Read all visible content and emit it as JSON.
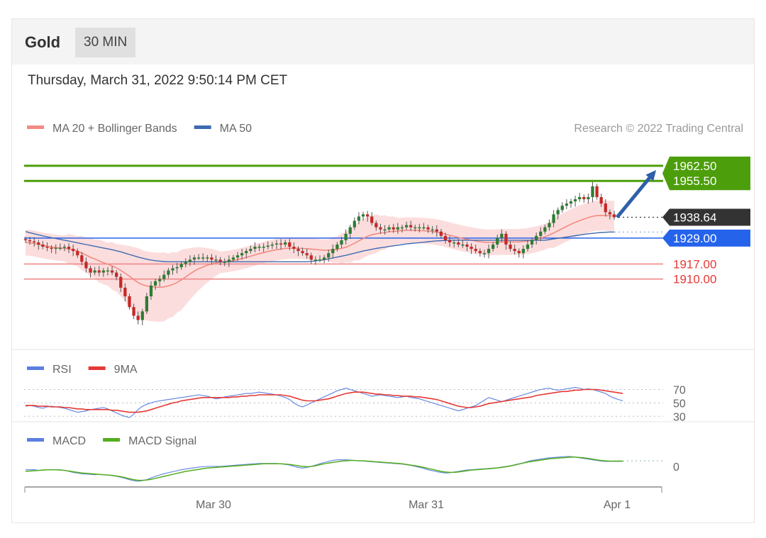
{
  "header": {
    "title": "Gold",
    "timeframe": "30 MIN"
  },
  "timestamp": "Thursday, March 31, 2022 9:50:14 PM CET",
  "colors": {
    "green": "#4c9e0b",
    "blue": "#2563eb",
    "red": "#e53935",
    "dark": "#333333",
    "band": "#fcd7d7",
    "ma20": "#f28b82",
    "ma50": "#3d6bb3",
    "rsi": "#5b7fe0",
    "ninema": "#e53935",
    "macd": "#5b7fe0",
    "signal": "#54ad1e"
  },
  "chart_data": [
    {
      "type": "candlestick",
      "legend": [
        {
          "label": "MA 20 + Bollinger Bands",
          "color": "#f28b82"
        },
        {
          "label": "MA 50",
          "color": "#3d6bb3"
        }
      ],
      "credit": "Research © 2022 Trading Central",
      "ylim": [
        1880,
        1972
      ],
      "x_labels": [
        "Mar 30",
        "Mar 31",
        "Apr 1"
      ],
      "levels": [
        {
          "value": 1962.5,
          "label": "1962.50",
          "kind": "resistance"
        },
        {
          "value": 1955.5,
          "label": "1955.50",
          "kind": "resistance"
        },
        {
          "value": 1938.64,
          "label": "1938.64",
          "kind": "last"
        },
        {
          "value": 1929.0,
          "label": "1929.00",
          "kind": "pivot"
        },
        {
          "value": 1917.0,
          "label": "1917.00",
          "kind": "support"
        },
        {
          "value": 1910.0,
          "label": "1910.00",
          "kind": "support"
        }
      ],
      "close": [
        1928,
        1927.5,
        1927,
        1926,
        1925,
        1924.5,
        1924,
        1924.5,
        1924.5,
        1925,
        1924,
        1923,
        1921,
        1918,
        1915,
        1913,
        1914,
        1913,
        1914,
        1914,
        1913,
        1911,
        1906,
        1902,
        1897,
        1893,
        1891,
        1895,
        1902,
        1907,
        1909,
        1910,
        1912,
        1914,
        1915,
        1915.5,
        1917,
        1918,
        1919,
        1920,
        1920,
        1920,
        1920,
        1919,
        1919,
        1918,
        1918,
        1919,
        1920,
        1921,
        1922,
        1923,
        1924,
        1925,
        1925,
        1925,
        1925.5,
        1926,
        1926.5,
        1926,
        1927,
        1925,
        1924,
        1923,
        1922,
        1921,
        1919,
        1919,
        1919,
        1920,
        1922,
        1924,
        1926,
        1928,
        1931,
        1934,
        1937,
        1939,
        1940,
        1939,
        1936,
        1934,
        1933,
        1933,
        1934,
        1933,
        1934,
        1934,
        1935,
        1934,
        1934,
        1934,
        1934,
        1933,
        1933,
        1932,
        1930,
        1928,
        1927,
        1927,
        1926,
        1926,
        1925,
        1924,
        1923,
        1922,
        1922,
        1924,
        1926,
        1929,
        1931,
        1926,
        1924,
        1923,
        1922,
        1924,
        1926,
        1928,
        1930,
        1932,
        1934,
        1936,
        1940,
        1942,
        1944,
        1945,
        1946,
        1947,
        1948,
        1947,
        1948,
        1953,
        1948,
        1945,
        1941,
        1940,
        1938.64
      ],
      "ma20": [
        1927,
        1926.8,
        1926.5,
        1926,
        1925.6,
        1925.2,
        1924.9,
        1924.6,
        1924.4,
        1924.2,
        1923.9,
        1923.5,
        1922.9,
        1922.1,
        1921.1,
        1920.1,
        1919.3,
        1918.4,
        1917.6,
        1916.9,
        1916.1,
        1915.2,
        1914,
        1912.7,
        1911.3,
        1909.8,
        1908.4,
        1907.4,
        1906.8,
        1906.5,
        1906.3,
        1906.2,
        1906.4,
        1906.8,
        1907.5,
        1908.4,
        1909.6,
        1911,
        1912.4,
        1913.7,
        1914.8,
        1915.6,
        1916.4,
        1917,
        1917.5,
        1917.8,
        1918,
        1918.3,
        1918.6,
        1919,
        1919.5,
        1920,
        1920.6,
        1921.2,
        1921.8,
        1922.3,
        1922.8,
        1923.2,
        1923.6,
        1923.9,
        1924.2,
        1924.3,
        1924.3,
        1924.3,
        1924.2,
        1924.1,
        1923.9,
        1923.7,
        1923.5,
        1923.4,
        1923.4,
        1923.5,
        1923.8,
        1924.2,
        1924.8,
        1925.6,
        1926.6,
        1927.7,
        1928.8,
        1929.8,
        1930.5,
        1931,
        1931.3,
        1931.6,
        1931.9,
        1932.1,
        1932.3,
        1932.5,
        1932.6,
        1932.6,
        1932.6,
        1932.5,
        1932.4,
        1932.2,
        1932,
        1931.7,
        1931.3,
        1930.8,
        1930.3,
        1929.8,
        1929.3,
        1928.8,
        1928.4,
        1928,
        1927.6,
        1927.3,
        1927.1,
        1927,
        1927,
        1927.1,
        1927.2,
        1927.2,
        1927.2,
        1927.2,
        1927.2,
        1927.4,
        1927.6,
        1928,
        1928.4,
        1929,
        1929.6,
        1930.4,
        1931.4,
        1932.4,
        1933.4,
        1934.4,
        1935.4,
        1936.3,
        1937.1,
        1937.8,
        1938.5,
        1939.1,
        1939.4,
        1939.5,
        1939.4,
        1939.3,
        1939.3
      ],
      "bb_width": [
        6,
        6,
        6,
        6,
        6,
        6,
        6,
        6,
        6,
        6,
        7,
        7,
        7,
        8,
        8,
        9,
        9,
        10,
        10,
        10,
        11,
        11,
        12,
        13,
        14,
        15,
        16,
        16,
        16,
        16,
        16,
        16,
        16,
        15,
        15,
        14,
        14,
        13,
        12,
        11,
        10,
        9,
        8,
        7,
        6,
        5,
        5,
        5,
        5,
        5,
        5,
        5,
        5,
        5,
        5,
        5,
        5,
        5,
        5,
        5,
        5,
        5,
        5,
        5,
        5,
        5,
        5,
        5,
        5,
        5,
        5,
        6,
        6,
        7,
        7,
        8,
        8,
        9,
        9,
        9,
        9,
        9,
        8,
        8,
        7,
        7,
        6,
        6,
        6,
        6,
        6,
        6,
        6,
        6,
        6,
        6,
        6,
        6,
        6,
        6,
        6,
        6,
        6,
        6,
        6,
        6,
        6,
        6,
        6,
        6,
        6,
        6,
        6,
        6,
        6,
        6,
        6,
        6,
        6,
        6,
        6,
        6,
        7,
        7,
        7,
        7,
        7,
        7,
        7,
        7,
        7,
        7,
        7,
        7,
        7,
        7,
        7,
        7,
        7
      ],
      "ma50": [
        1932,
        1931.5,
        1931,
        1930.5,
        1930,
        1929.6,
        1929.2,
        1928.8,
        1928.4,
        1928,
        1927.6,
        1927.2,
        1926.8,
        1926.4,
        1926,
        1925.6,
        1925.2,
        1924.8,
        1924.4,
        1924,
        1923.6,
        1923.1,
        1922.6,
        1922,
        1921.4,
        1920.8,
        1920.2,
        1919.7,
        1919.2,
        1918.8,
        1918.5,
        1918.3,
        1918.1,
        1918,
        1918,
        1918,
        1918,
        1918,
        1918,
        1918,
        1918,
        1918,
        1918,
        1918,
        1918,
        1918,
        1918,
        1918,
        1918,
        1918,
        1918,
        1918,
        1918,
        1918,
        1918,
        1918,
        1918,
        1918,
        1918,
        1918,
        1918,
        1918,
        1918,
        1918,
        1918,
        1918,
        1918.2,
        1918.4,
        1918.7,
        1919,
        1919.4,
        1919.8,
        1920.2,
        1920.6,
        1921,
        1921.5,
        1922,
        1922.5,
        1923,
        1923.4,
        1923.8,
        1924.2,
        1924.5,
        1924.8,
        1925.1,
        1925.4,
        1925.7,
        1926,
        1926.3,
        1926.5,
        1926.7,
        1926.9,
        1927.1,
        1927.3,
        1927.5,
        1927.7,
        1927.8,
        1927.9,
        1928,
        1928,
        1928,
        1928,
        1928,
        1928,
        1928,
        1928,
        1928,
        1928,
        1928,
        1928,
        1928,
        1928,
        1928,
        1928,
        1928,
        1928,
        1928,
        1928,
        1928,
        1928,
        1928,
        1928.3,
        1928.6,
        1928.9,
        1929.2,
        1929.5,
        1929.8,
        1930.1,
        1930.4,
        1930.7,
        1931,
        1931.2,
        1931.4,
        1931.6,
        1931.7,
        1931.8,
        1931.8
      ],
      "arrow": {
        "from": 1938.64,
        "to": 1960.5
      }
    },
    {
      "type": "line",
      "legend": [
        {
          "label": "RSI",
          "color": "#5b7fe0"
        },
        {
          "label": "9MA",
          "color": "#e53935"
        }
      ],
      "ylim": [
        25,
        80
      ],
      "y_ticks": [
        {
          "value": 70,
          "label": "70"
        },
        {
          "value": 50,
          "label": "50"
        },
        {
          "value": 30,
          "label": "30"
        }
      ],
      "series": [
        {
          "name": "RSI",
          "values": [
            45,
            46,
            45,
            43,
            42,
            44,
            45,
            44,
            43,
            42,
            40,
            38,
            36,
            37,
            38,
            40,
            41,
            42,
            43,
            41,
            38,
            35,
            32,
            30,
            28,
            33,
            40,
            45,
            48,
            50,
            52,
            53,
            54,
            55,
            56,
            57,
            58,
            59,
            60,
            61,
            62,
            61,
            60,
            58,
            56,
            57,
            59,
            60,
            61,
            62,
            63,
            64,
            64,
            65,
            66,
            65,
            64,
            63,
            62,
            60,
            58,
            55,
            50,
            46,
            44,
            47,
            50,
            53,
            56,
            59,
            62,
            65,
            68,
            70,
            72,
            70,
            68,
            66,
            64,
            62,
            60,
            61,
            62,
            61,
            60,
            59,
            58,
            59,
            60,
            58,
            57,
            56,
            54,
            52,
            50,
            48,
            46,
            44,
            42,
            40,
            38,
            40,
            42,
            44,
            46,
            50,
            54,
            58,
            56,
            54,
            52,
            54,
            56,
            58,
            60,
            62,
            64,
            66,
            68,
            70,
            71,
            72,
            70,
            69,
            70,
            71,
            72,
            73,
            72,
            70,
            71,
            70,
            68,
            66,
            64,
            60,
            57,
            55,
            53
          ]
        },
        {
          "name": "9MA",
          "values": [
            46,
            46,
            46,
            45,
            45,
            45,
            44,
            44,
            44,
            43,
            43,
            42,
            41,
            41,
            40,
            40,
            40,
            40,
            40,
            40,
            39,
            39,
            38,
            37,
            36,
            36,
            36,
            37,
            38,
            40,
            42,
            44,
            46,
            48,
            50,
            51,
            53,
            54,
            55,
            56,
            57,
            58,
            58,
            58,
            58,
            58,
            58,
            58,
            59,
            59,
            60,
            60,
            61,
            61,
            62,
            62,
            62,
            62,
            62,
            62,
            61,
            60,
            58,
            56,
            54,
            53,
            53,
            53,
            54,
            55,
            56,
            58,
            60,
            62,
            64,
            65,
            66,
            66,
            66,
            65,
            64,
            63,
            63,
            62,
            62,
            61,
            61,
            60,
            60,
            60,
            59,
            59,
            58,
            57,
            56,
            55,
            53,
            51,
            49,
            47,
            45,
            44,
            43,
            43,
            44,
            45,
            47,
            49,
            50,
            51,
            52,
            53,
            54,
            55,
            56,
            57,
            58,
            59,
            61,
            62,
            63,
            64,
            65,
            66,
            67,
            67,
            68,
            69,
            69,
            70,
            70,
            70,
            70,
            69,
            68,
            67,
            66,
            65,
            64
          ]
        }
      ]
    },
    {
      "type": "line",
      "legend": [
        {
          "label": "MACD",
          "color": "#5b7fe0"
        },
        {
          "label": "MACD Signal",
          "color": "#54ad1e"
        }
      ],
      "ylim": [
        -6,
        6
      ],
      "y_ticks": [
        {
          "value": 0,
          "label": "0"
        }
      ],
      "series": [
        {
          "name": "MACD",
          "values": [
            -1,
            -1,
            -1,
            -1.2,
            -1.2,
            -1,
            -1,
            -1,
            -1,
            -1.2,
            -1.5,
            -1.8,
            -2,
            -2.2,
            -2.3,
            -2.4,
            -2.5,
            -2.4,
            -2.5,
            -2.6,
            -2.8,
            -3,
            -3.3,
            -3.6,
            -4,
            -4.3,
            -4.5,
            -4.3,
            -4,
            -3.5,
            -3,
            -2.6,
            -2.2,
            -1.9,
            -1.6,
            -1.3,
            -1,
            -0.8,
            -0.6,
            -0.4,
            -0.2,
            -0.1,
            0,
            0,
            0,
            0,
            0.1,
            0.2,
            0.3,
            0.4,
            0.5,
            0.6,
            0.7,
            0.8,
            0.9,
            0.9,
            0.9,
            0.9,
            0.9,
            0.8,
            0.6,
            0.4,
            0,
            -0.3,
            -0.5,
            -0.3,
            0,
            0.4,
            0.8,
            1.2,
            1.5,
            1.8,
            2,
            2,
            2,
            1.9,
            1.8,
            1.7,
            1.6,
            1.5,
            1.4,
            1.3,
            1.2,
            1.1,
            1,
            0.9,
            0.8,
            0.7,
            0.5,
            0.3,
            0,
            -0.3,
            -0.6,
            -1,
            -1.3,
            -1.6,
            -1.8,
            -2,
            -1.9,
            -1.7,
            -1.5,
            -1.3,
            -1.1,
            -1,
            -0.9,
            -0.8,
            -0.7,
            -0.6,
            -0.5,
            -0.4,
            -0.2,
            0,
            0.2,
            0.5,
            0.8,
            1.1,
            1.5,
            1.8,
            2,
            2.2,
            2.4,
            2.6,
            2.7,
            2.8,
            2.9,
            3,
            3,
            2.8,
            2.6,
            2.4,
            2.2,
            2,
            1.8,
            1.6,
            1.5,
            1.5,
            1.5,
            1.5,
            1.5
          ]
        },
        {
          "name": "MACD Signal",
          "values": [
            -1.5,
            -1.4,
            -1.3,
            -1.2,
            -1.1,
            -1,
            -1,
            -1,
            -1.1,
            -1.2,
            -1.4,
            -1.6,
            -1.8,
            -2,
            -2.1,
            -2.2,
            -2.3,
            -2.4,
            -2.5,
            -2.6,
            -2.7,
            -2.9,
            -3.1,
            -3.4,
            -3.7,
            -4,
            -4.2,
            -4.2,
            -4.1,
            -3.9,
            -3.6,
            -3.3,
            -3,
            -2.7,
            -2.4,
            -2.1,
            -1.8,
            -1.5,
            -1.3,
            -1.1,
            -0.9,
            -0.7,
            -0.5,
            -0.4,
            -0.3,
            -0.2,
            -0.1,
            0,
            0.1,
            0.2,
            0.3,
            0.4,
            0.5,
            0.6,
            0.7,
            0.8,
            0.8,
            0.8,
            0.8,
            0.8,
            0.7,
            0.6,
            0.4,
            0.2,
            0,
            -0.1,
            0,
            0.2,
            0.5,
            0.8,
            1,
            1.2,
            1.4,
            1.6,
            1.7,
            1.8,
            1.8,
            1.7,
            1.7,
            1.6,
            1.5,
            1.4,
            1.3,
            1.2,
            1.1,
            1,
            0.9,
            0.8,
            0.6,
            0.4,
            0.2,
            0,
            -0.3,
            -0.6,
            -0.9,
            -1.2,
            -1.5,
            -1.7,
            -1.8,
            -1.8,
            -1.7,
            -1.5,
            -1.3,
            -1.1,
            -1,
            -0.9,
            -0.8,
            -0.7,
            -0.6,
            -0.5,
            -0.3,
            -0.1,
            0.1,
            0.4,
            0.7,
            1,
            1.3,
            1.5,
            1.7,
            1.9,
            2.1,
            2.3,
            2.4,
            2.5,
            2.6,
            2.7,
            2.8,
            2.8,
            2.7,
            2.6,
            2.4,
            2.2,
            2,
            1.8,
            1.7,
            1.6,
            1.6,
            1.6,
            1.6
          ]
        }
      ]
    }
  ]
}
